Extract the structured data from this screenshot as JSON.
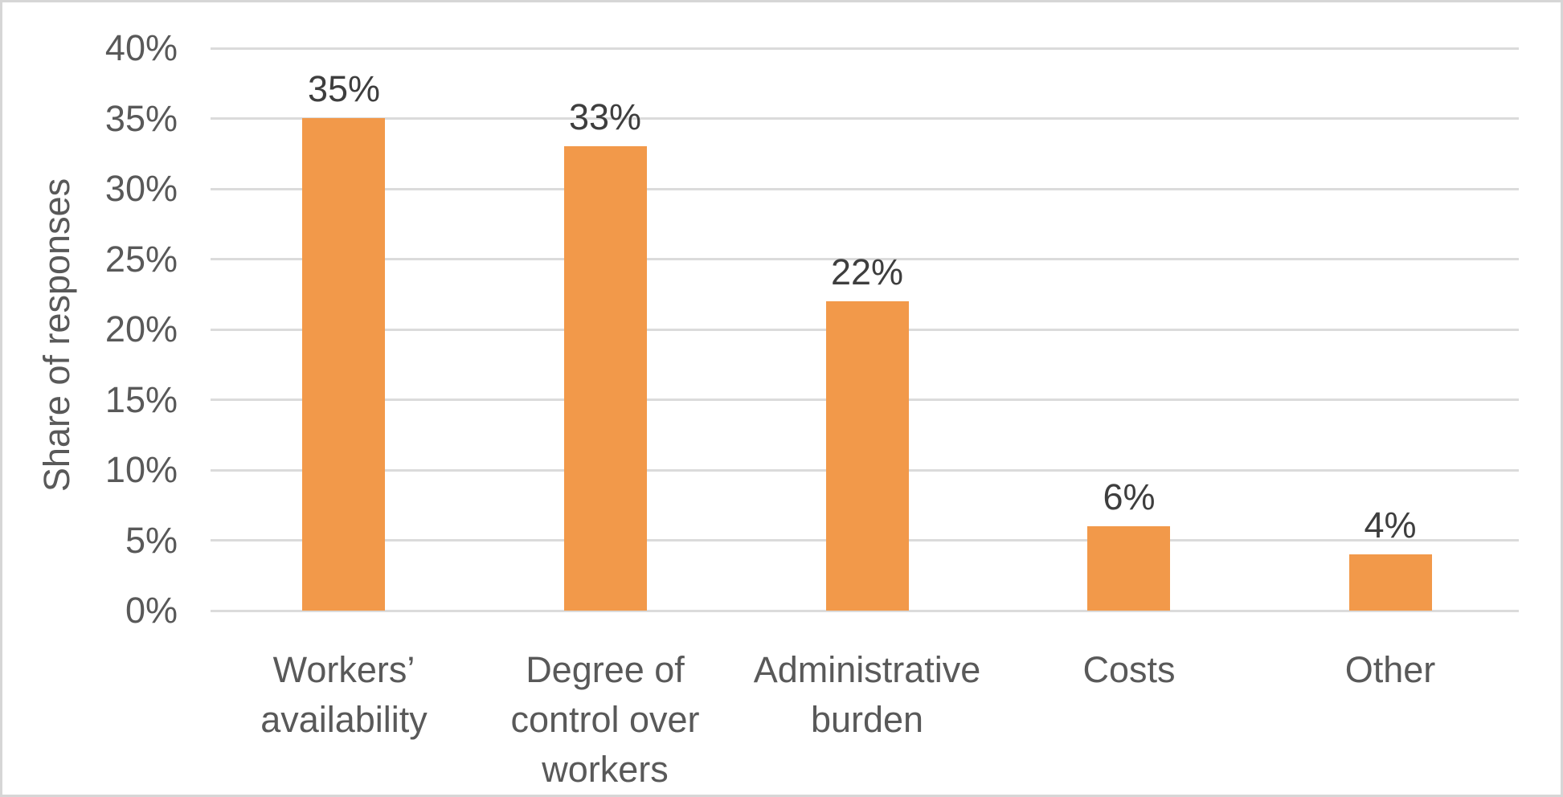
{
  "chart_data": {
    "type": "bar",
    "title": "",
    "xlabel": "",
    "ylabel": "Share of responses",
    "categories": [
      "Workers’ availability",
      "Degree of control over workers",
      "Administrative burden",
      "Costs",
      "Other"
    ],
    "category_label_lines": [
      [
        "Workers’",
        "availability"
      ],
      [
        "Degree of",
        "control over",
        "workers"
      ],
      [
        "Administrative",
        "burden"
      ],
      [
        "Costs"
      ],
      [
        "Other"
      ]
    ],
    "values": [
      35,
      33,
      22,
      6,
      4
    ],
    "data_labels": [
      "35%",
      "33%",
      "22%",
      "6%",
      "4%"
    ],
    "ylim": [
      0,
      40
    ],
    "ytick_step": 5,
    "ytick_labels": [
      "0%",
      "5%",
      "10%",
      "15%",
      "20%",
      "25%",
      "30%",
      "35%",
      "40%"
    ],
    "grid": true,
    "legend": "none",
    "bar_color": "#F2994A",
    "data_label_color": "#3E3E3E",
    "axis_text_color": "#595959",
    "gridline_color": "#DBDBDB"
  }
}
